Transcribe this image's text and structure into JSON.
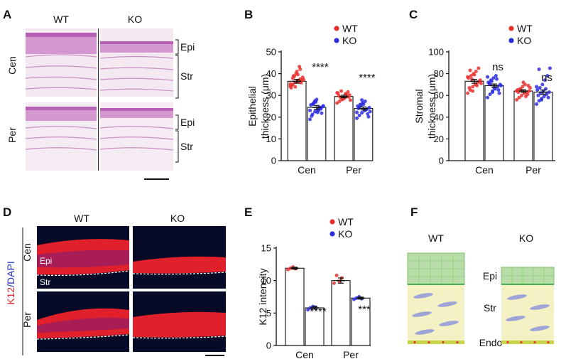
{
  "panels": {
    "A": {
      "letter": "A",
      "col_labels": [
        "WT",
        "KO"
      ],
      "row_labels": [
        "Cen",
        "Per"
      ],
      "layer_labels": [
        "Epi",
        "Str"
      ]
    },
    "D": {
      "letter": "D",
      "col_labels": [
        "WT",
        "KO"
      ],
      "row_labels": [
        "Cen",
        "Per"
      ],
      "stain_red": "K12",
      "stain_blue": "DAPI",
      "in_image_labels": [
        "Epi",
        "Str"
      ]
    },
    "F": {
      "letter": "F",
      "col_labels": [
        "WT",
        "KO"
      ],
      "layer_labels": [
        "Epi",
        "Str",
        "Endo"
      ]
    }
  },
  "colors": {
    "wt": "#e8312f",
    "ko": "#2d2de0",
    "he_pink": "#c978c9",
    "epi_green": "#b8dca8",
    "stroma_yellow": "#f4f2c4",
    "k12_red": "#e0202a",
    "dapi_blue": "#2838c8"
  },
  "chart_data": [
    {
      "letter": "B",
      "type": "bar",
      "categories": [
        "Cen",
        "Per"
      ],
      "ylabel_line1": "Epithelial",
      "ylabel_line2": "thickness (μm)",
      "ylim": [
        0,
        50
      ],
      "yticks": [
        "0",
        "10",
        "20",
        "30",
        "40",
        "50"
      ],
      "legend": [
        "WT",
        "KO"
      ],
      "series": [
        {
          "name": "WT",
          "values": [
            36.5,
            29.5
          ],
          "sem": [
            0.9,
            0.6
          ]
        },
        {
          "name": "KO",
          "values": [
            24.5,
            24.0
          ],
          "sem": [
            0.9,
            0.7
          ]
        }
      ],
      "points": [
        [
          34.2,
          35.1,
          36.0,
          36.8,
          37.5,
          38.3,
          33.5,
          39.0,
          40.1,
          36.4,
          35.8,
          37.2,
          34.7,
          38.8,
          41.0,
          43.2,
          36.9,
          35.3,
          37.9,
          33.9,
          39.6,
          42.0
        ],
        [
          19.0,
          21.3,
          22.5,
          23.4,
          24.1,
          24.8,
          25.6,
          26.2,
          27.0,
          22.9,
          23.8,
          25.2,
          20.5,
          26.8,
          28.1,
          24.5,
          21.8,
          23.1,
          25.9,
          27.5,
          22.2,
          24.3
        ],
        [
          26.5,
          27.3,
          28.1,
          28.8,
          29.5,
          30.2,
          31.0,
          29.1,
          28.4,
          30.7,
          31.6,
          27.8,
          29.9,
          32.0,
          28.6,
          30.4,
          29.3,
          31.2
        ],
        [
          19.5,
          20.8,
          22.0,
          23.0,
          23.7,
          24.4,
          25.1,
          25.8,
          26.6,
          27.3,
          21.5,
          22.6,
          24.0,
          25.4,
          26.0,
          23.4,
          20.2,
          22.2,
          24.8,
          27.9
        ]
      ],
      "sig": [
        "****",
        "****"
      ]
    },
    {
      "letter": "C",
      "type": "bar",
      "categories": [
        "Cen",
        "Per"
      ],
      "ylabel_line1": "Stromal",
      "ylabel_line2": "thickness (μm)",
      "ylim": [
        0,
        100
      ],
      "yticks": [
        "0",
        "20",
        "40",
        "60",
        "80",
        "100"
      ],
      "legend": [
        "WT",
        "KO"
      ],
      "series": [
        {
          "name": "WT",
          "values": [
            73,
            64
          ],
          "sem": [
            1.8,
            1.2
          ]
        },
        {
          "name": "KO",
          "values": [
            69,
            63
          ],
          "sem": [
            1.5,
            2.0
          ]
        }
      ],
      "points": [
        [
          62,
          65,
          68,
          70,
          72,
          74,
          76,
          78,
          80,
          82,
          85,
          71,
          67,
          75,
          79,
          69,
          73,
          77,
          83,
          64
        ],
        [
          58,
          61,
          63,
          66,
          68,
          70,
          72,
          74,
          76,
          78,
          65,
          69,
          71,
          73,
          67,
          75,
          62,
          77,
          70,
          64
        ],
        [
          56,
          58,
          60,
          62,
          63,
          64,
          65,
          66,
          68,
          70,
          61,
          67,
          63,
          65,
          72,
          59,
          69,
          64
        ],
        [
          52,
          55,
          57,
          59,
          61,
          63,
          65,
          67,
          70,
          74,
          78,
          85,
          60,
          62,
          64,
          66,
          58,
          68,
          84,
          56
        ]
      ],
      "sig": [
        "ns",
        "ns"
      ]
    },
    {
      "letter": "E",
      "type": "bar",
      "categories": [
        "Cen",
        "Per"
      ],
      "ylabel_line1": "K12 intensity",
      "ylabel_line2": "",
      "ylim": [
        0,
        15
      ],
      "yticks": [
        "0",
        "5",
        "10",
        "15"
      ],
      "legend": [
        "WT",
        "KO"
      ],
      "series": [
        {
          "name": "WT",
          "values": [
            11.9,
            10.0
          ],
          "sem": [
            0.15,
            0.4
          ]
        },
        {
          "name": "KO",
          "values": [
            5.8,
            7.3
          ],
          "sem": [
            0.2,
            0.15
          ]
        }
      ],
      "points": [
        [
          11.7,
          11.9,
          12.1,
          11.8
        ],
        [
          5.5,
          5.8,
          6.0,
          5.9
        ],
        [
          9.6,
          10.8,
          9.9,
          10.4
        ],
        [
          7.1,
          7.3,
          7.5,
          7.2
        ]
      ],
      "sig": [
        "****",
        "***"
      ]
    }
  ]
}
